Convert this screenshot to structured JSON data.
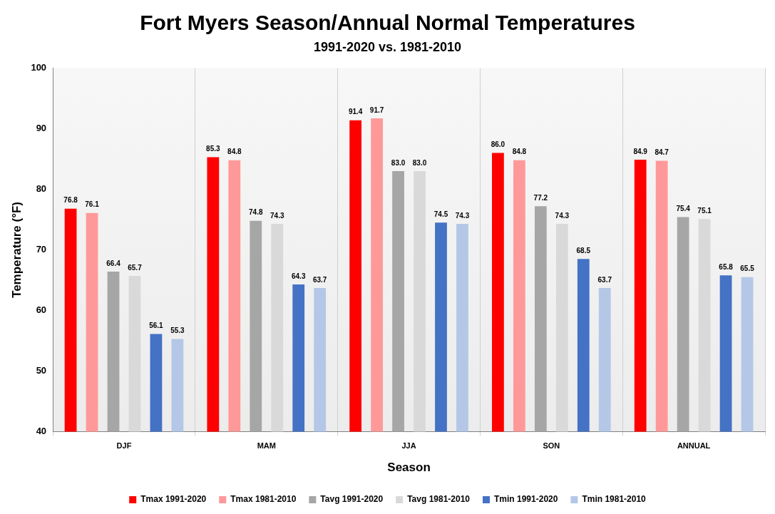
{
  "chart_data": {
    "type": "bar",
    "title": "Fort Myers Season/Annual Normal Temperatures",
    "subtitle": "1991-2020 vs. 1981-2010",
    "x_label": "Season",
    "y_label": "Temperature (°F)",
    "categories": [
      "DJF",
      "MAM",
      "JJA",
      "SON",
      "ANNUAL"
    ],
    "series": [
      {
        "name": "Tmax 1991-2020",
        "color": "#ff0000",
        "values": [
          76.8,
          85.3,
          91.4,
          86.0,
          84.9
        ],
        "value_labels": [
          "76.8",
          "85.3",
          "91.4",
          "86.0",
          "84.9"
        ]
      },
      {
        "name": "Tmax 1981-2010",
        "color": "#ff9999",
        "values": [
          76.1,
          84.8,
          91.7,
          84.8,
          84.7
        ],
        "value_labels": [
          "76.1",
          "84.8",
          "91.7",
          "84.8",
          "84.7"
        ]
      },
      {
        "name": "Tavg 1991-2020",
        "color": "#a6a6a6",
        "values": [
          66.4,
          74.8,
          83.0,
          77.2,
          75.4
        ],
        "value_labels": [
          "66.4",
          "74.8",
          "83.0",
          "77.2",
          "75.4"
        ]
      },
      {
        "name": "Tavg 1981-2010",
        "color": "#d9d9d9",
        "values": [
          65.7,
          74.3,
          83.0,
          74.3,
          75.1
        ],
        "value_labels": [
          "65.7",
          "74.3",
          "83.0",
          "74.3",
          "75.1"
        ]
      },
      {
        "name": "Tmin 1991-2020",
        "color": "#4472c4",
        "values": [
          56.1,
          64.3,
          74.5,
          68.5,
          65.8
        ],
        "value_labels": [
          "56.1",
          "64.3",
          "74.5",
          "68.5",
          "65.8"
        ]
      },
      {
        "name": "Tmin 1981-2010",
        "color": "#b4c7e7",
        "values": [
          55.3,
          63.7,
          74.3,
          63.7,
          65.5
        ],
        "value_labels": [
          "55.3",
          "63.7",
          "74.3",
          "63.7",
          "65.5"
        ]
      }
    ],
    "ylim": [
      40,
      100
    ],
    "yticks": [
      40,
      50,
      60,
      70,
      80,
      90,
      100
    ],
    "grid": false,
    "legend": "bottom",
    "data_labels": true
  }
}
